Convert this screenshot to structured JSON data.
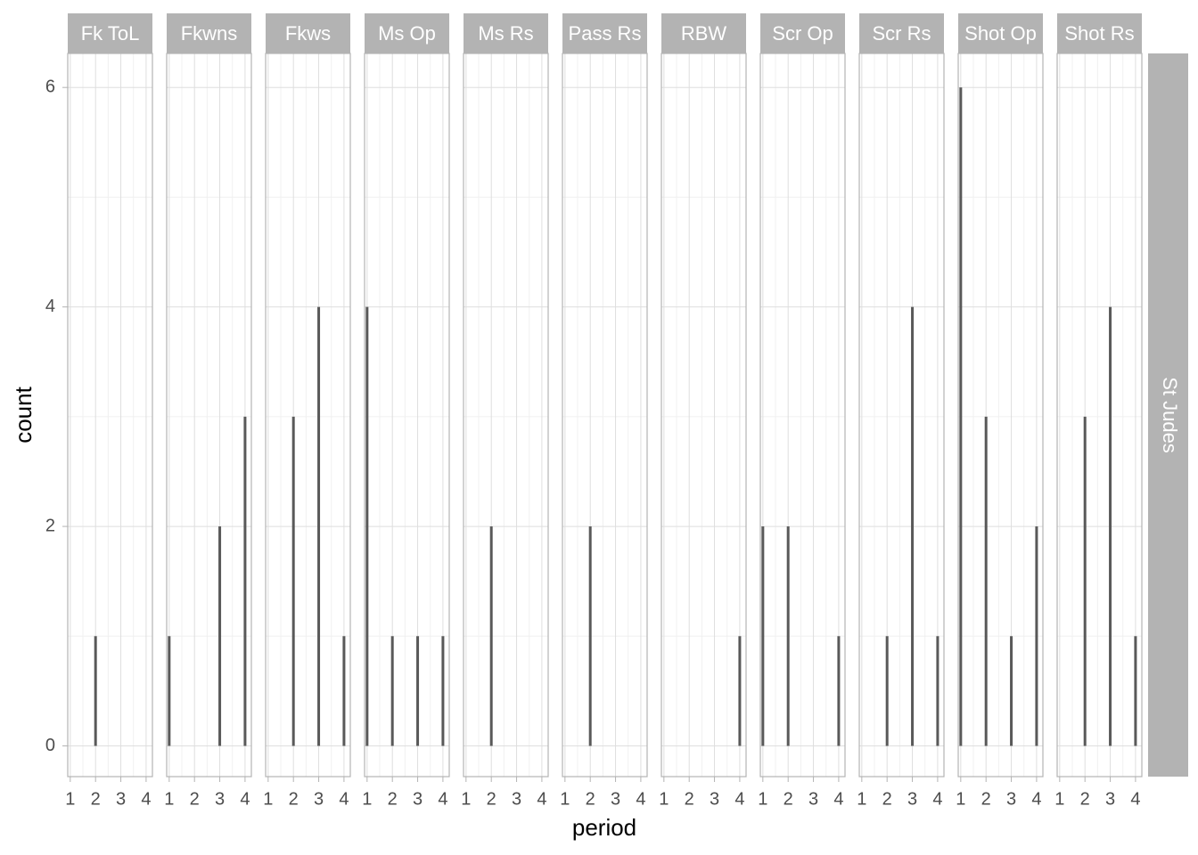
{
  "chart_data": {
    "type": "bar",
    "x_label": "period",
    "y_label": "count",
    "row_label": "St Judes",
    "xlim": [
      0.9,
      4.25
    ],
    "xticks": [
      1,
      2,
      3,
      4
    ],
    "ylim": [
      -0.28,
      6.31
    ],
    "yticks": [
      0,
      2,
      4,
      6
    ],
    "grid": true,
    "color": "#595959",
    "panels": [
      {
        "title": "Fk ToL",
        "x": [
          2
        ],
        "values": [
          1
        ]
      },
      {
        "title": "Fkwns",
        "x": [
          1,
          3,
          4
        ],
        "values": [
          1,
          2,
          3
        ]
      },
      {
        "title": "Fkws",
        "x": [
          2,
          3,
          4
        ],
        "values": [
          3,
          4,
          1
        ]
      },
      {
        "title": "Ms Op",
        "x": [
          1,
          2,
          3,
          4
        ],
        "values": [
          4,
          1,
          1,
          1
        ]
      },
      {
        "title": "Ms Rs",
        "x": [
          2
        ],
        "values": [
          2
        ]
      },
      {
        "title": "Pass  Rs",
        "x": [
          2
        ],
        "values": [
          2
        ]
      },
      {
        "title": "RBW",
        "x": [
          4
        ],
        "values": [
          1
        ]
      },
      {
        "title": "Scr Op",
        "x": [
          1,
          2,
          4
        ],
        "values": [
          2,
          2,
          1
        ]
      },
      {
        "title": "Scr Rs",
        "x": [
          2,
          3,
          4
        ],
        "values": [
          1,
          4,
          1
        ]
      },
      {
        "title": "Shot Op",
        "x": [
          1,
          2,
          3,
          4
        ],
        "values": [
          6,
          3,
          1,
          2
        ]
      },
      {
        "title": "Shot Rs",
        "x": [
          2,
          3,
          4
        ],
        "values": [
          3,
          4,
          1
        ]
      }
    ]
  }
}
